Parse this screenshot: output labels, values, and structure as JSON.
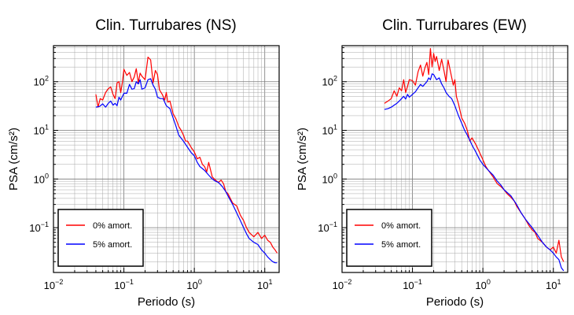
{
  "chart_data": [
    {
      "type": "line",
      "title": "Clin. Turrubares (NS)",
      "xlabel": "Periodo (s)",
      "ylabel": "PSA (cm/s²)",
      "xscale": "log",
      "yscale": "log",
      "xlim": [
        0.01,
        16
      ],
      "ylim": [
        0.012,
        550
      ],
      "grid": true,
      "legend_position": "bottom-left",
      "x_ticks": [
        {
          "base": "10",
          "exp": "−2"
        },
        {
          "base": "10",
          "exp": "−1"
        },
        {
          "base": "10",
          "exp": "0"
        },
        {
          "base": "10",
          "exp": "1"
        }
      ],
      "y_ticks": [
        {
          "base": "10",
          "exp": "−1"
        },
        {
          "base": "10",
          "exp": "0"
        },
        {
          "base": "10",
          "exp": "1"
        },
        {
          "base": "10",
          "exp": "2"
        }
      ],
      "series": [
        {
          "name": "0% amort.",
          "color": "#ff0000",
          "x": [
            0.04,
            0.043,
            0.046,
            0.05,
            0.055,
            0.06,
            0.065,
            0.07,
            0.075,
            0.08,
            0.085,
            0.09,
            0.095,
            0.1,
            0.11,
            0.12,
            0.13,
            0.14,
            0.15,
            0.16,
            0.17,
            0.18,
            0.2,
            0.22,
            0.24,
            0.26,
            0.28,
            0.3,
            0.32,
            0.35,
            0.38,
            0.4,
            0.42,
            0.45,
            0.5,
            0.55,
            0.6,
            0.65,
            0.7,
            0.75,
            0.8,
            0.9,
            1.0,
            1.1,
            1.2,
            1.3,
            1.4,
            1.5,
            1.6,
            1.8,
            2.0,
            2.2,
            2.4,
            2.6,
            2.8,
            3.0,
            3.5,
            4.0,
            4.5,
            5.0,
            5.5,
            6.0,
            7.0,
            8.0,
            9.0,
            10.0,
            11.0,
            12.0,
            13.0,
            14.0,
            15.0
          ],
          "y": [
            55,
            30,
            45,
            42,
            60,
            72,
            78,
            55,
            45,
            95,
            100,
            60,
            95,
            180,
            135,
            155,
            100,
            125,
            185,
            95,
            150,
            130,
            110,
            320,
            280,
            95,
            170,
            140,
            68,
            55,
            42,
            60,
            38,
            40,
            22,
            17,
            12,
            10,
            8,
            6,
            6,
            4.5,
            3.6,
            2.6,
            2.8,
            2.0,
            1.8,
            1.4,
            2.2,
            1.1,
            0.95,
            0.85,
            0.95,
            0.8,
            0.55,
            0.5,
            0.32,
            0.28,
            0.18,
            0.14,
            0.1,
            0.08,
            0.065,
            0.08,
            0.06,
            0.07,
            0.055,
            0.05,
            0.04,
            0.035,
            0.03
          ]
        },
        {
          "name": "5% amort.",
          "color": "#0000ff",
          "x": [
            0.04,
            0.045,
            0.05,
            0.055,
            0.06,
            0.065,
            0.07,
            0.075,
            0.08,
            0.085,
            0.09,
            0.1,
            0.11,
            0.12,
            0.13,
            0.14,
            0.15,
            0.16,
            0.17,
            0.18,
            0.2,
            0.22,
            0.24,
            0.26,
            0.28,
            0.3,
            0.33,
            0.36,
            0.4,
            0.45,
            0.5,
            0.55,
            0.6,
            0.7,
            0.8,
            0.9,
            1.0,
            1.1,
            1.2,
            1.4,
            1.6,
            1.8,
            2.0,
            2.2,
            2.5,
            2.8,
            3.0,
            3.5,
            4.0,
            4.5,
            5.0,
            5.5,
            6.0,
            7.0,
            8.0,
            9.0,
            10.0,
            11.0,
            12.0,
            13.0,
            14.0,
            15.0
          ],
          "y": [
            30,
            31,
            35,
            30,
            36,
            40,
            33,
            36,
            32,
            48,
            42,
            58,
            58,
            88,
            70,
            72,
            100,
            90,
            110,
            70,
            75,
            110,
            115,
            85,
            70,
            48,
            45,
            45,
            32,
            28,
            18,
            12,
            8,
            6,
            4.5,
            3.5,
            3.0,
            2.2,
            1.8,
            1.5,
            1.2,
            1.0,
            0.9,
            0.85,
            0.7,
            0.55,
            0.45,
            0.3,
            0.2,
            0.14,
            0.1,
            0.075,
            0.06,
            0.05,
            0.045,
            0.035,
            0.03,
            0.025,
            0.022,
            0.02,
            0.019,
            0.019
          ]
        }
      ]
    },
    {
      "type": "line",
      "title": "Clin. Turrubares (EW)",
      "xlabel": "Periodo (s)",
      "ylabel": "PSA (cm/s²)",
      "xscale": "log",
      "yscale": "log",
      "xlim": [
        0.01,
        16
      ],
      "ylim": [
        0.012,
        550
      ],
      "grid": true,
      "legend_position": "bottom-left",
      "x_ticks": [
        {
          "base": "10",
          "exp": "−2"
        },
        {
          "base": "10",
          "exp": "−1"
        },
        {
          "base": "10",
          "exp": "0"
        },
        {
          "base": "10",
          "exp": "1"
        }
      ],
      "y_ticks": [
        {
          "base": "10",
          "exp": "−1"
        },
        {
          "base": "10",
          "exp": "0"
        },
        {
          "base": "10",
          "exp": "1"
        },
        {
          "base": "10",
          "exp": "2"
        }
      ],
      "series": [
        {
          "name": "0% amort.",
          "color": "#ff0000",
          "x": [
            0.04,
            0.045,
            0.05,
            0.055,
            0.06,
            0.065,
            0.07,
            0.075,
            0.08,
            0.085,
            0.09,
            0.1,
            0.11,
            0.12,
            0.13,
            0.14,
            0.15,
            0.16,
            0.17,
            0.18,
            0.19,
            0.2,
            0.21,
            0.22,
            0.24,
            0.26,
            0.28,
            0.3,
            0.32,
            0.35,
            0.38,
            0.4,
            0.42,
            0.45,
            0.5,
            0.55,
            0.6,
            0.65,
            0.7,
            0.8,
            0.9,
            1.0,
            1.1,
            1.2,
            1.4,
            1.6,
            1.8,
            2.0,
            2.2,
            2.5,
            2.8,
            3.0,
            3.5,
            4.0,
            4.5,
            5.0,
            5.5,
            6.0,
            7.0,
            8.0,
            9.0,
            10.0,
            11.0,
            12.0,
            13.0,
            14.0
          ],
          "y": [
            36,
            40,
            45,
            65,
            50,
            75,
            65,
            110,
            60,
            80,
            110,
            105,
            85,
            160,
            220,
            130,
            190,
            250,
            140,
            480,
            200,
            380,
            260,
            330,
            170,
            290,
            170,
            100,
            280,
            150,
            85,
            110,
            50,
            35,
            18,
            14,
            10,
            6,
            7,
            5,
            3.5,
            2.5,
            1.8,
            1.5,
            1.1,
            0.8,
            0.7,
            0.6,
            0.5,
            0.42,
            0.35,
            0.28,
            0.2,
            0.15,
            0.11,
            0.09,
            0.08,
            0.06,
            0.05,
            0.04,
            0.035,
            0.04,
            0.03,
            0.055,
            0.025,
            0.02
          ]
        },
        {
          "name": "5% amort.",
          "color": "#0000ff",
          "x": [
            0.04,
            0.045,
            0.05,
            0.055,
            0.06,
            0.065,
            0.07,
            0.075,
            0.08,
            0.085,
            0.09,
            0.1,
            0.11,
            0.12,
            0.13,
            0.14,
            0.15,
            0.16,
            0.17,
            0.18,
            0.19,
            0.2,
            0.22,
            0.24,
            0.26,
            0.28,
            0.3,
            0.33,
            0.36,
            0.4,
            0.45,
            0.5,
            0.55,
            0.6,
            0.7,
            0.8,
            0.9,
            1.0,
            1.2,
            1.4,
            1.6,
            1.8,
            2.0,
            2.5,
            3.0,
            3.5,
            4.0,
            5.0,
            6.0,
            7.0,
            8.0,
            9.0,
            10.0,
            11.0,
            12.0,
            13.0,
            14.0
          ],
          "y": [
            27,
            28,
            30,
            33,
            36,
            40,
            45,
            50,
            44,
            55,
            48,
            55,
            62,
            75,
            88,
            80,
            90,
            100,
            120,
            110,
            145,
            140,
            110,
            120,
            90,
            75,
            60,
            50,
            45,
            32,
            20,
            14,
            10,
            8,
            5,
            3.5,
            2.5,
            2.0,
            1.5,
            1.2,
            0.9,
            0.75,
            0.6,
            0.45,
            0.3,
            0.2,
            0.15,
            0.1,
            0.07,
            0.05,
            0.04,
            0.035,
            0.03,
            0.025,
            0.022,
            0.015,
            0.013
          ]
        }
      ]
    }
  ]
}
